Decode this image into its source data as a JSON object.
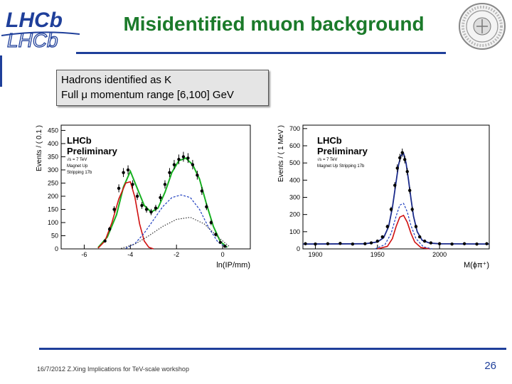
{
  "slide": {
    "title": "Misidentified muon background",
    "caption_lines": [
      "Hadrons identified as K",
      "Full μ momentum range [6,100] GeV"
    ],
    "footer": "16/7/2012 Z.Xing Implications for TeV-scale workshop",
    "page_number": "26",
    "logos": {
      "left_text": "LHCb",
      "right_text": "SYRACUSE UNIVERSITY FOUNDED 1870"
    }
  },
  "colors": {
    "title": "#1b7a2a",
    "rule": "#1f3f9a",
    "left_total_fit": "#17b020",
    "right_total_fit": "#1a2a8a",
    "signal_curve": "#d01010",
    "blue_dashed": "#1f3fc0",
    "black_dotted": "#333333"
  },
  "chart_data": [
    {
      "type": "scatter",
      "ylabel": "Events / ( 0.1 )",
      "xlabel": "ln(IP/mm)",
      "labels": [
        "LHCb",
        "Preliminary",
        "√s = 7 TeV",
        "Magnet Up",
        "Stripping 17b"
      ],
      "xlim": [
        -7,
        1.2
      ],
      "ylim": [
        0,
        470
      ],
      "x_ticks": [
        -6,
        -4,
        -2,
        0
      ],
      "y_ticks": [
        0,
        50,
        100,
        150,
        200,
        250,
        300,
        350,
        400,
        450
      ],
      "points_x": [
        -5.1,
        -4.9,
        -4.7,
        -4.5,
        -4.3,
        -4.1,
        -3.9,
        -3.7,
        -3.5,
        -3.3,
        -3.1,
        -2.9,
        -2.7,
        -2.5,
        -2.3,
        -2.1,
        -1.9,
        -1.7,
        -1.5,
        -1.3,
        -1.1,
        -0.9,
        -0.7,
        -0.5,
        -0.3,
        -0.1,
        0.1
      ],
      "points_y": [
        30,
        75,
        150,
        230,
        290,
        300,
        245,
        200,
        165,
        150,
        140,
        155,
        195,
        245,
        290,
        320,
        340,
        350,
        345,
        320,
        280,
        220,
        160,
        100,
        55,
        25,
        10
      ],
      "series": [
        {
          "name": "total fit",
          "style": "solid-green",
          "x": [
            -5.4,
            -5.0,
            -4.6,
            -4.3,
            -4.0,
            -3.7,
            -3.4,
            -3.1,
            -2.8,
            -2.5,
            -2.2,
            -1.9,
            -1.6,
            -1.3,
            -1.0,
            -0.7,
            -0.4,
            -0.1,
            0.2
          ],
          "y": [
            5,
            45,
            130,
            235,
            295,
            230,
            165,
            140,
            155,
            215,
            290,
            335,
            345,
            320,
            265,
            170,
            85,
            28,
            6
          ]
        },
        {
          "name": "",
          "style": "solid-red",
          "x": [
            -5.4,
            -5.1,
            -4.8,
            -4.5,
            -4.2,
            -4.0,
            -3.8,
            -3.6,
            -3.4,
            -3.2,
            -3.0
          ],
          "y": [
            3,
            30,
            100,
            190,
            250,
            255,
            195,
            95,
            30,
            6,
            0
          ]
        },
        {
          "name": "",
          "style": "dashed-blue",
          "x": [
            -4.2,
            -3.8,
            -3.4,
            -3.0,
            -2.6,
            -2.2,
            -1.8,
            -1.4,
            -1.0,
            -0.6,
            -0.2,
            0.2
          ],
          "y": [
            2,
            20,
            60,
            110,
            160,
            195,
            205,
            195,
            150,
            80,
            25,
            4
          ]
        },
        {
          "name": "",
          "style": "dotted-black",
          "x": [
            -4.4,
            -3.8,
            -3.2,
            -2.6,
            -2.0,
            -1.4,
            -0.8,
            -0.2,
            0.3
          ],
          "y": [
            2,
            18,
            50,
            85,
            112,
            120,
            95,
            45,
            8
          ]
        }
      ]
    },
    {
      "type": "scatter",
      "ylabel": "Events / ( 1 MeV )",
      "xlabel": "M(ϕπ⁺)",
      "labels": [
        "LHCb",
        "Preliminary",
        "√s = 7 TeV",
        "Magnet Up Stripping 17b"
      ],
      "xlim": [
        1890,
        2040
      ],
      "ylim": [
        0,
        720
      ],
      "x_ticks": [
        1900,
        1950,
        2000
      ],
      "y_ticks": [
        0,
        100,
        200,
        300,
        400,
        500,
        600,
        700
      ],
      "points_x": [
        1892,
        1900,
        1910,
        1920,
        1930,
        1940,
        1945,
        1950,
        1954,
        1958,
        1961,
        1964,
        1966,
        1968,
        1970,
        1972,
        1974,
        1976,
        1978,
        1981,
        1984,
        1988,
        1993,
        2000,
        2010,
        2020,
        2030,
        2038
      ],
      "points_y": [
        30,
        28,
        30,
        32,
        28,
        30,
        35,
        45,
        70,
        130,
        230,
        370,
        470,
        530,
        560,
        520,
        450,
        340,
        230,
        130,
        70,
        45,
        35,
        30,
        28,
        30,
        28,
        30
      ],
      "series": [
        {
          "name": "total fit",
          "style": "solid-navy",
          "x": [
            1890,
            1940,
            1950,
            1955,
            1959,
            1962,
            1965,
            1967,
            1969,
            1971,
            1973,
            1975,
            1977,
            1979,
            1982,
            1986,
            1992,
            2000,
            2040
          ],
          "y": [
            28,
            30,
            40,
            65,
            130,
            240,
            390,
            490,
            545,
            555,
            500,
            400,
            290,
            190,
            100,
            50,
            34,
            30,
            28
          ]
        },
        {
          "name": "",
          "style": "solid-red",
          "x": [
            1950,
            1958,
            1962,
            1965,
            1968,
            1971,
            1974,
            1977,
            1980,
            1985,
            1992
          ],
          "y": [
            0,
            15,
            60,
            130,
            185,
            195,
            155,
            90,
            40,
            8,
            0
          ]
        },
        {
          "name": "",
          "style": "dashed-blue",
          "x": [
            1948,
            1956,
            1961,
            1965,
            1968,
            1971,
            1974,
            1977,
            1981,
            1987,
            1994
          ],
          "y": [
            0,
            25,
            90,
            190,
            255,
            265,
            215,
            135,
            60,
            12,
            0
          ]
        }
      ]
    }
  ]
}
